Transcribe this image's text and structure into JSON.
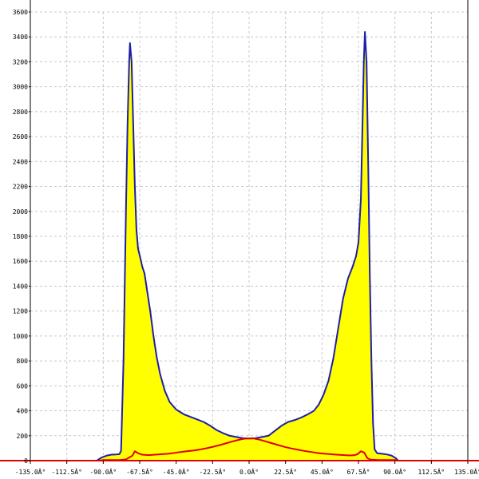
{
  "chart_data": {
    "type": "area",
    "grid": true,
    "xlim": [
      -135,
      135
    ],
    "ylim": [
      0,
      3600
    ],
    "x_ticks": [
      -135.0,
      -112.5,
      -90.0,
      -67.5,
      -45.0,
      -22.5,
      0.0,
      22.5,
      45.0,
      67.5,
      90.0,
      112.5,
      135.0
    ],
    "x_tick_labels": [
      "-135.0Â°",
      "-112.5Â°",
      "-90.0Â°",
      "-67.5Â°",
      "-45.0Â°",
      "-22.5Â°",
      "0.0Â°",
      "22.5Â°",
      "45.0Â°",
      "67.5Â°",
      "90.0Â°",
      "112.5Â°",
      "135.0Â°"
    ],
    "y_ticks": [
      0,
      200,
      400,
      600,
      800,
      1000,
      1200,
      1400,
      1600,
      1800,
      2000,
      2200,
      2400,
      2600,
      2800,
      3000,
      3200,
      3400,
      3600
    ],
    "series": [
      {
        "fill": "#ffff00",
        "line_color": "#1e1ea8",
        "points": [
          [
            -135,
            0
          ],
          [
            -94,
            0
          ],
          [
            -91,
            25
          ],
          [
            -88,
            40
          ],
          [
            -85,
            48
          ],
          [
            -82,
            50
          ],
          [
            -80,
            52
          ],
          [
            -79,
            80
          ],
          [
            -77.5,
            800
          ],
          [
            -76,
            2000
          ],
          [
            -75,
            2700
          ],
          [
            -74,
            3200
          ],
          [
            -73.5,
            3350
          ],
          [
            -72.5,
            3200
          ],
          [
            -71.5,
            2700
          ],
          [
            -70.5,
            2200
          ],
          [
            -69.5,
            1850
          ],
          [
            -68.5,
            1700
          ],
          [
            -67,
            1620
          ],
          [
            -66,
            1560
          ],
          [
            -64.5,
            1500
          ],
          [
            -63,
            1370
          ],
          [
            -61,
            1200
          ],
          [
            -59,
            1000
          ],
          [
            -57,
            830
          ],
          [
            -55,
            700
          ],
          [
            -52,
            560
          ],
          [
            -49,
            470
          ],
          [
            -45,
            410
          ],
          [
            -40,
            370
          ],
          [
            -36,
            350
          ],
          [
            -32,
            330
          ],
          [
            -28,
            310
          ],
          [
            -24,
            280
          ],
          [
            -20,
            245
          ],
          [
            -16,
            220
          ],
          [
            -12,
            200
          ],
          [
            -8,
            190
          ],
          [
            -4,
            180
          ],
          [
            0,
            178
          ],
          [
            4,
            180
          ],
          [
            8,
            190
          ],
          [
            12,
            200
          ],
          [
            16,
            240
          ],
          [
            20,
            280
          ],
          [
            24,
            310
          ],
          [
            28,
            325
          ],
          [
            32,
            345
          ],
          [
            36,
            370
          ],
          [
            40,
            400
          ],
          [
            43,
            450
          ],
          [
            46,
            530
          ],
          [
            49,
            640
          ],
          [
            52,
            820
          ],
          [
            55,
            1060
          ],
          [
            58,
            1300
          ],
          [
            61,
            1460
          ],
          [
            64,
            1560
          ],
          [
            66,
            1640
          ],
          [
            67.5,
            1750
          ],
          [
            69,
            2100
          ],
          [
            70,
            2700
          ],
          [
            70.8,
            3200
          ],
          [
            71.5,
            3440
          ],
          [
            72.5,
            3200
          ],
          [
            73.5,
            2400
          ],
          [
            74.5,
            1500
          ],
          [
            75.5,
            800
          ],
          [
            76.5,
            300
          ],
          [
            77.5,
            90
          ],
          [
            79,
            60
          ],
          [
            82,
            55
          ],
          [
            85,
            50
          ],
          [
            88,
            40
          ],
          [
            90.5,
            20
          ],
          [
            92,
            0
          ],
          [
            135,
            0
          ]
        ]
      },
      {
        "fill": "none",
        "line_color": "#e00000",
        "points": [
          [
            -135,
            0
          ],
          [
            -92,
            0
          ],
          [
            -90,
            5
          ],
          [
            -85,
            5
          ],
          [
            -80,
            5
          ],
          [
            -76,
            10
          ],
          [
            -72,
            40
          ],
          [
            -70.5,
            75
          ],
          [
            -68.5,
            60
          ],
          [
            -66,
            48
          ],
          [
            -62,
            44
          ],
          [
            -58,
            48
          ],
          [
            -54,
            52
          ],
          [
            -50,
            55
          ],
          [
            -46,
            62
          ],
          [
            -42,
            70
          ],
          [
            -38,
            76
          ],
          [
            -34,
            82
          ],
          [
            -30,
            90
          ],
          [
            -26,
            100
          ],
          [
            -22,
            112
          ],
          [
            -18,
            125
          ],
          [
            -14,
            140
          ],
          [
            -10,
            155
          ],
          [
            -6,
            168
          ],
          [
            -3,
            176
          ],
          [
            0,
            178
          ],
          [
            3,
            178
          ],
          [
            6,
            170
          ],
          [
            10,
            155
          ],
          [
            14,
            140
          ],
          [
            18,
            125
          ],
          [
            22,
            110
          ],
          [
            26,
            98
          ],
          [
            30,
            88
          ],
          [
            34,
            78
          ],
          [
            38,
            70
          ],
          [
            42,
            62
          ],
          [
            46,
            56
          ],
          [
            50,
            52
          ],
          [
            54,
            48
          ],
          [
            58,
            45
          ],
          [
            62,
            42
          ],
          [
            65,
            44
          ],
          [
            67,
            52
          ],
          [
            69,
            75
          ],
          [
            71,
            65
          ],
          [
            73,
            20
          ],
          [
            75,
            8
          ],
          [
            80,
            5
          ],
          [
            85,
            5
          ],
          [
            90,
            5
          ],
          [
            92,
            0
          ],
          [
            135,
            0
          ]
        ]
      }
    ]
  }
}
